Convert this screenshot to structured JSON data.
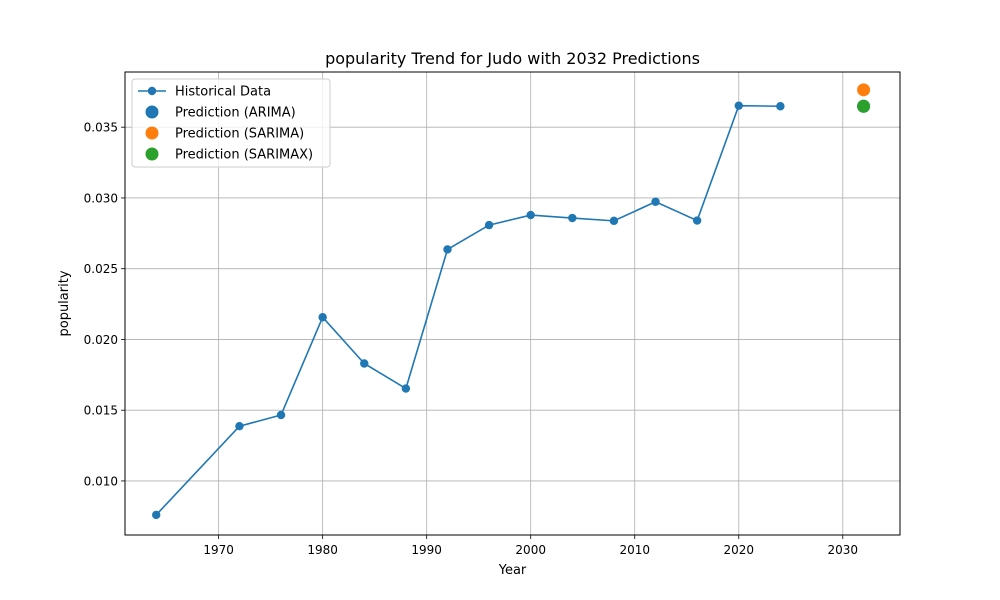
{
  "chart_data": {
    "type": "line",
    "title": "popularity Trend for Judo with 2032 Predictions",
    "xlabel": "Year",
    "ylabel": "popularity",
    "xlim": [
      1961,
      2035.5
    ],
    "ylim": [
      0.00618,
      0.0389
    ],
    "xticks": [
      1970,
      1980,
      1990,
      2000,
      2010,
      2020,
      2030
    ],
    "yticks": [
      0.01,
      0.015,
      0.02,
      0.025,
      0.03,
      0.035
    ],
    "ytick_decimals": 3,
    "grid": true,
    "legend_position": "upper-left",
    "series": [
      {
        "name": "Historical Data",
        "kind": "line-marker",
        "color": "#1f77b4",
        "x": [
          1964,
          1972,
          1976,
          1980,
          1984,
          1988,
          1992,
          1996,
          2000,
          2004,
          2008,
          2012,
          2016,
          2020,
          2024
        ],
        "y": [
          0.0076,
          0.01387,
          0.01466,
          0.02157,
          0.0183,
          0.01653,
          0.02636,
          0.02808,
          0.02879,
          0.02858,
          0.02838,
          0.02973,
          0.0284,
          0.03652,
          0.03648
        ]
      },
      {
        "name": "Prediction (ARIMA)",
        "kind": "scatter",
        "color": "#1f77b4",
        "x": [
          2032
        ],
        "y": [
          0.03648
        ]
      },
      {
        "name": "Prediction (SARIMA)",
        "kind": "scatter",
        "color": "#ff7f0e",
        "x": [
          2032
        ],
        "y": [
          0.03764
        ]
      },
      {
        "name": "Prediction (SARIMAX)",
        "kind": "scatter",
        "color": "#2ca02c",
        "x": [
          2032
        ],
        "y": [
          0.03648
        ]
      }
    ]
  }
}
